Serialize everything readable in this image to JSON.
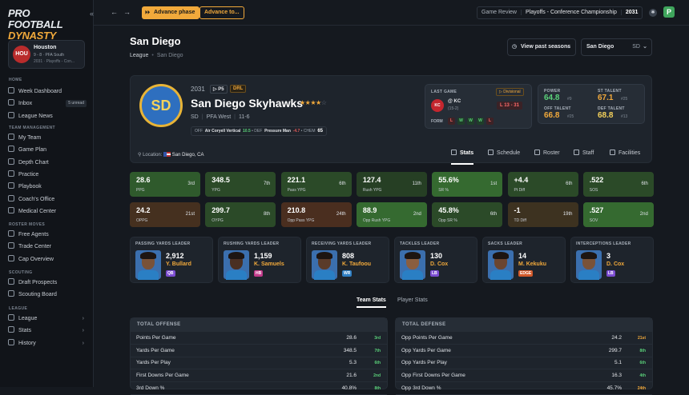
{
  "app": {
    "logo_line1": "PRO FOOTBALL",
    "logo_line2": "DYNASTY",
    "collapse_icon": "«"
  },
  "team_card": {
    "abbr": "HOU",
    "name": "Houston",
    "record": "9 - 8 · PFA South",
    "season": "2031 · Playoffs - Con..."
  },
  "nav": {
    "home_label": "HOME",
    "home": [
      {
        "label": "Week Dashboard"
      },
      {
        "label": "Inbox",
        "badge": "5 unread"
      },
      {
        "label": "League News"
      }
    ],
    "team_label": "TEAM MANAGEMENT",
    "team": [
      {
        "label": "My Team"
      },
      {
        "label": "Game Plan"
      },
      {
        "label": "Depth Chart"
      },
      {
        "label": "Practice"
      },
      {
        "label": "Playbook"
      },
      {
        "label": "Coach's Office"
      },
      {
        "label": "Medical Center"
      }
    ],
    "roster_label": "ROSTER MOVES",
    "roster": [
      {
        "label": "Free Agents"
      },
      {
        "label": "Trade Center"
      },
      {
        "label": "Cap Overview"
      }
    ],
    "scout_label": "SCOUTING",
    "scout": [
      {
        "label": "Draft Prospects"
      },
      {
        "label": "Scouting Board"
      }
    ],
    "league_label": "LEAGUE",
    "league": [
      {
        "label": "League"
      },
      {
        "label": "Stats"
      },
      {
        "label": "History"
      }
    ]
  },
  "topbar": {
    "back": "←",
    "forward": "→",
    "advance_phase": "Advance phase",
    "advance_to": "Advance to...",
    "game_review": "Game Review",
    "phase": "Playoffs - Conference Championship",
    "year": "2031",
    "gear": "✱",
    "brand_icon": "P"
  },
  "page": {
    "title": "San Diego",
    "breadcrumb_root": "League",
    "breadcrumb_current": "San Diego",
    "view_past": "View past seasons",
    "team_select": "San Diego",
    "team_select_abbr": "SD"
  },
  "hero": {
    "badge": "SD",
    "year": "2031",
    "tag_p5": "P5",
    "tag_drl": "DRL",
    "name": "San Diego Skyhawks",
    "stars_full": "★★★★",
    "stars_empty": "☆",
    "abbr": "SD",
    "division": "PFA West",
    "record": "11-6",
    "off_label": "OFF",
    "off_scheme": "Air Coryell Vertical",
    "off_val": "10.5",
    "def_label": "DEF",
    "def_scheme": "Pressure Man",
    "def_val": "-4.7",
    "chem_label": "CHEM",
    "chem_val": "65",
    "location_label": "Location:",
    "location": "San Diego, CA",
    "last_game": {
      "title": "LAST GAME",
      "tag": "Divisional",
      "opp_abbr": "KC",
      "opp": "@ KC",
      "opp_record": "(15-2)",
      "score": "L 13 - 31",
      "form_label": "FORM",
      "form": [
        "L",
        "W",
        "W",
        "W",
        "L"
      ]
    },
    "ratings": [
      {
        "label": "POWER",
        "value": "64.8",
        "rank": "#9",
        "color": "#5bd27a"
      },
      {
        "label": "ST TALENT",
        "value": "67.1",
        "rank": "#25",
        "color": "#f1a93b"
      },
      {
        "label": "OFF TALENT",
        "value": "66.8",
        "rank": "#25",
        "color": "#f1a93b"
      },
      {
        "label": "DEF TALENT",
        "value": "68.8",
        "rank": "#13",
        "color": "#f5d25b"
      }
    ],
    "tabs": [
      "Stats",
      "Schedule",
      "Roster",
      "Staff",
      "Facilities"
    ]
  },
  "tiles": [
    {
      "value": "28.6",
      "label": "PPG",
      "rank": "3rd",
      "color": "#2f5a2c"
    },
    {
      "value": "348.5",
      "label": "YPG",
      "rank": "7th",
      "color": "#2b4a28"
    },
    {
      "value": "221.1",
      "label": "Pass YPG",
      "rank": "6th",
      "color": "#2b4a28"
    },
    {
      "value": "127.4",
      "label": "Rush YPG",
      "rank": "11th",
      "color": "#263f24"
    },
    {
      "value": "55.6%",
      "label": "SR %",
      "rank": "1st",
      "color": "#356a30"
    },
    {
      "value": "+4.4",
      "label": "Pt Diff",
      "rank": "6th",
      "color": "#2b4a28"
    },
    {
      "value": ".522",
      "label": "SOS",
      "rank": "6th",
      "color": "#2b4a28"
    },
    {
      "value": "24.2",
      "label": "OPPG",
      "rank": "21st",
      "color": "#45301f"
    },
    {
      "value": "299.7",
      "label": "OYPG",
      "rank": "8th",
      "color": "#2b4a28"
    },
    {
      "value": "210.8",
      "label": "Opp Pass YPG",
      "rank": "24th",
      "color": "#4a2e1f"
    },
    {
      "value": "88.9",
      "label": "Opp Rush YPG",
      "rank": "2nd",
      "color": "#356a30"
    },
    {
      "value": "45.8%",
      "label": "Opp SR %",
      "rank": "6th",
      "color": "#2b4a28"
    },
    {
      "value": "-1",
      "label": "TD Diff",
      "rank": "19th",
      "color": "#3d3220"
    },
    {
      "value": ".527",
      "label": "SOV",
      "rank": "2nd",
      "color": "#356a30"
    }
  ],
  "leaders": [
    {
      "title": "PASSING YARDS LEADER",
      "value": "2,912",
      "name": "Y. Bullard",
      "pos": "QB",
      "pos_color": "#7c4dd1"
    },
    {
      "title": "RUSHING YARDS LEADER",
      "value": "1,159",
      "name": "K. Samuels",
      "pos": "HB",
      "pos_color": "#c23a8a"
    },
    {
      "title": "RECEIVING YARDS LEADER",
      "value": "808",
      "name": "K. Taufoou",
      "pos": "WR",
      "pos_color": "#2f7fc4"
    },
    {
      "title": "TACKLES LEADER",
      "value": "130",
      "name": "D. Cox",
      "pos": "LB",
      "pos_color": "#7c4dd1"
    },
    {
      "title": "SACKS LEADER",
      "value": "14",
      "name": "M. Kekuku",
      "pos": "EDGE",
      "pos_color": "#d2592a"
    },
    {
      "title": "INTERCEPTIONS LEADER",
      "value": "3",
      "name": "D. Cox",
      "pos": "LB",
      "pos_color": "#7c4dd1"
    }
  ],
  "stat_tabs": [
    "Team Stats",
    "Player Stats"
  ],
  "offense": {
    "title": "TOTAL OFFENSE",
    "rows": [
      {
        "label": "Points Per Game",
        "value": "28.6",
        "rank": "3rd",
        "color": "#5bd27a"
      },
      {
        "label": "Yards Per Game",
        "value": "348.5",
        "rank": "7th",
        "color": "#5bd27a"
      },
      {
        "label": "Yards Per Play",
        "value": "5.3",
        "rank": "6th",
        "color": "#5bd27a"
      },
      {
        "label": "First Downs Per Game",
        "value": "21.6",
        "rank": "2nd",
        "color": "#5bd27a"
      },
      {
        "label": "3rd Down %",
        "value": "40.8%",
        "rank": "8th",
        "color": "#5bd27a"
      }
    ]
  },
  "defense": {
    "title": "TOTAL DEFENSE",
    "rows": [
      {
        "label": "Opp Points Per Game",
        "value": "24.2",
        "rank": "21st",
        "color": "#f1a93b"
      },
      {
        "label": "Opp Yards Per Game",
        "value": "299.7",
        "rank": "8th",
        "color": "#5bd27a"
      },
      {
        "label": "Opp Yards Per Play",
        "value": "5.1",
        "rank": "6th",
        "color": "#5bd27a"
      },
      {
        "label": "Opp First Downs Per Game",
        "value": "16.3",
        "rank": "4th",
        "color": "#5bd27a"
      },
      {
        "label": "Opp 3rd Down %",
        "value": "45.7%",
        "rank": "24th",
        "color": "#f1a93b"
      }
    ]
  }
}
